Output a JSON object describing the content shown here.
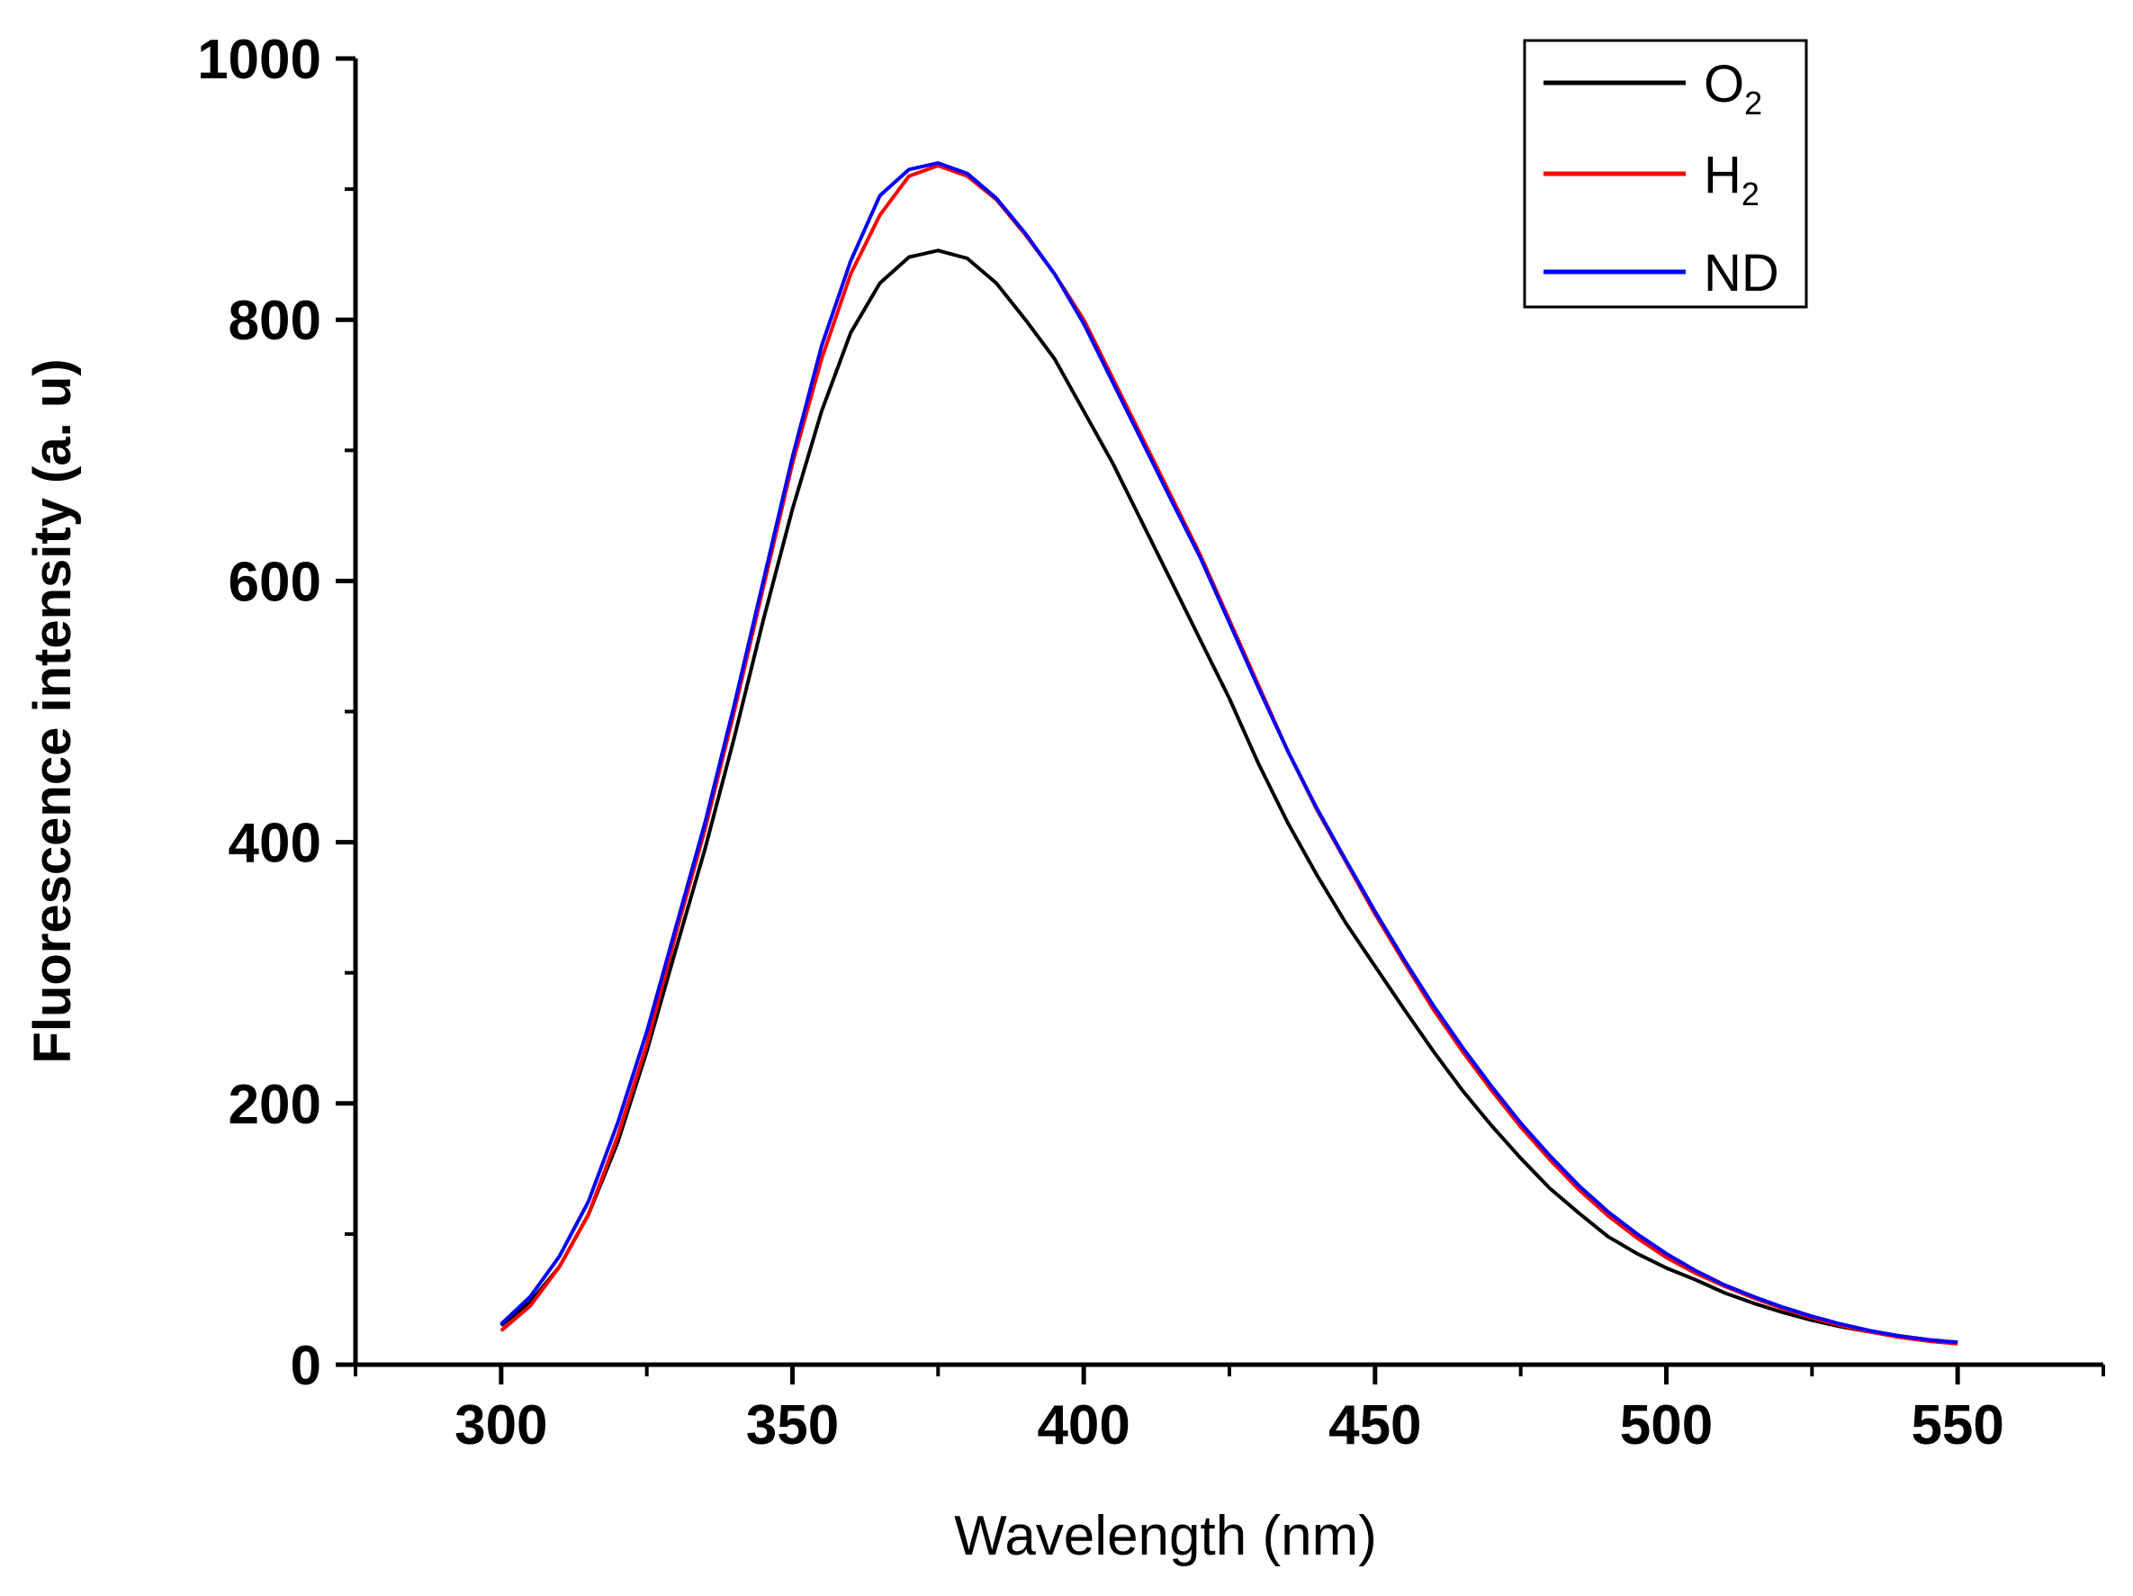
{
  "chart_data": {
    "type": "line",
    "title": "",
    "xlabel": "Wavelength (nm)",
    "ylabel": "Fluorescence intensity (a. u)",
    "xlim": [
      275,
      575
    ],
    "ylim": [
      0,
      1000
    ],
    "x_ticks": [
      300,
      350,
      400,
      450,
      500,
      550
    ],
    "y_ticks": [
      0,
      200,
      400,
      600,
      800,
      1000
    ],
    "x_tick_labels": [
      "300",
      "350",
      "400",
      "450",
      "500",
      "550"
    ],
    "y_tick_labels": [
      "0",
      "200",
      "400",
      "600",
      "800",
      "1000"
    ],
    "legend_position": "top-right",
    "legend": [
      {
        "base": "O",
        "sub": "2"
      },
      {
        "base": "H",
        "sub": "2"
      },
      {
        "base": "ND",
        "sub": ""
      }
    ],
    "x": [
      300,
      305,
      310,
      315,
      320,
      325,
      330,
      335,
      340,
      345,
      350,
      355,
      360,
      365,
      370,
      375,
      380,
      385,
      390,
      395,
      400,
      405,
      410,
      415,
      420,
      425,
      430,
      435,
      440,
      445,
      450,
      455,
      460,
      465,
      470,
      475,
      480,
      485,
      490,
      495,
      500,
      505,
      510,
      515,
      520,
      525,
      530,
      535,
      540,
      545,
      550
    ],
    "series": [
      {
        "name": "O2",
        "color": "#000000",
        "values": [
          30,
          48,
          75,
          115,
          170,
          240,
          318,
          395,
          480,
          570,
          655,
          730,
          790,
          828,
          848,
          853,
          847,
          828,
          800,
          770,
          730,
          690,
          645,
          600,
          555,
          510,
          460,
          415,
          375,
          338,
          305,
          272,
          240,
          210,
          183,
          158,
          135,
          116,
          98,
          85,
          74,
          65,
          55,
          47,
          40,
          34,
          29,
          25,
          22,
          19,
          17
        ]
      },
      {
        "name": "H2",
        "color": "#ff0000",
        "values": [
          26,
          45,
          75,
          115,
          175,
          245,
          330,
          410,
          500,
          595,
          690,
          770,
          835,
          880,
          910,
          918,
          910,
          892,
          865,
          835,
          800,
          755,
          710,
          665,
          620,
          570,
          520,
          470,
          425,
          385,
          345,
          308,
          272,
          240,
          210,
          182,
          157,
          134,
          114,
          97,
          82,
          70,
          60,
          51,
          43,
          36,
          30,
          25,
          21,
          18,
          16
        ]
      },
      {
        "name": "ND",
        "color": "#0000ff",
        "values": [
          31,
          52,
          83,
          125,
          185,
          255,
          335,
          415,
          505,
          600,
          695,
          780,
          845,
          895,
          915,
          920,
          912,
          893,
          866,
          835,
          797,
          752,
          707,
          662,
          618,
          568,
          518,
          470,
          426,
          386,
          347,
          310,
          275,
          243,
          213,
          185,
          160,
          137,
          117,
          100,
          85,
          72,
          61,
          52,
          44,
          37,
          31,
          26,
          22,
          19,
          17
        ]
      }
    ]
  }
}
